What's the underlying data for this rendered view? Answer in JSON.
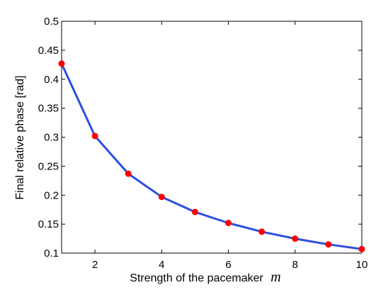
{
  "chart_data": {
    "type": "line",
    "title": "",
    "xlabel": "Strength of the pacemaker",
    "xlabel_symbol": "m",
    "ylabel": "Final relative phase [rad]",
    "xlim": [
      1,
      10
    ],
    "ylim": [
      0.1,
      0.5
    ],
    "xticks": [
      2,
      4,
      6,
      8,
      10
    ],
    "yticks": [
      0.1,
      0.15,
      0.2,
      0.25,
      0.3,
      0.35,
      0.4,
      0.45,
      0.5
    ],
    "xtick_labels": [
      "2",
      "4",
      "6",
      "8",
      "10"
    ],
    "ytick_labels": [
      "0.1",
      "0.15",
      "0.2",
      "0.25",
      "0.3",
      "0.35",
      "0.4",
      "0.45",
      "0.5"
    ],
    "grid": false,
    "legend": "none",
    "series": [
      {
        "x": [
          1,
          2,
          3,
          4,
          5,
          6,
          7,
          8,
          9,
          10
        ],
        "values": [
          0.427,
          0.302,
          0.237,
          0.197,
          0.171,
          0.152,
          0.137,
          0.125,
          0.115,
          0.107
        ],
        "line_color": "#2b4fe0",
        "marker_color": "#ff0000"
      }
    ]
  }
}
